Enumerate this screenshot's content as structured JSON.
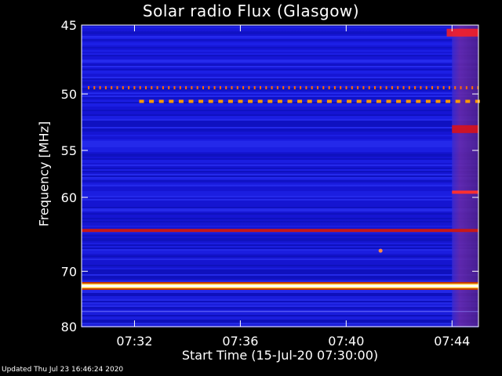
{
  "chart_data": {
    "type": "heatmap",
    "title": "Solar radio Flux (Glasgow)",
    "xlabel": "Start Time (15-Jul-20 07:30:00)",
    "ylabel": "Frequency [MHz]",
    "x_ticks": [
      "07:32",
      "07:36",
      "07:40",
      "07:44"
    ],
    "x_tick_minutes": [
      2,
      6,
      10,
      14
    ],
    "xlim_minutes": [
      0,
      15
    ],
    "y_ticks": [
      45,
      50,
      55,
      60,
      70,
      80
    ],
    "ylim": [
      45,
      80
    ],
    "y_scale": "reciprocal",
    "colors": {
      "background": "#1a1ae0",
      "grid": "none"
    },
    "features": [
      {
        "freq": 72.4,
        "start": 0,
        "end": 15,
        "color": "#ffffff",
        "type": "line"
      },
      {
        "freq": 64.1,
        "start": 0,
        "end": 15,
        "color": "#c81818",
        "type": "line"
      },
      {
        "freq": 49.5,
        "start": 0,
        "end": 15,
        "color": "#ff6a00",
        "type": "dotted"
      },
      {
        "freq": 50.6,
        "start": 0.4,
        "end": 15,
        "color": "#ff9a00",
        "type": "dashed"
      },
      {
        "freq": 59.4,
        "start": 14,
        "end": 15,
        "color": "#ff3030",
        "type": "line"
      },
      {
        "freq": 66.9,
        "start": 11.3,
        "end": 11.4,
        "color": "#ff8a40",
        "type": "point"
      },
      {
        "freq": 45.5,
        "start": 13.8,
        "end": 15,
        "color": "#ff2020",
        "type": "burst"
      },
      {
        "freq": 53.0,
        "start": 14,
        "end": 15,
        "color": "#e01010",
        "type": "burst"
      },
      {
        "freq": 77.0,
        "start": 0,
        "end": 15,
        "color": "#9090ff",
        "type": "faint"
      }
    ]
  },
  "footer": "Updated Thu Jul 23 16:46:24 2020"
}
